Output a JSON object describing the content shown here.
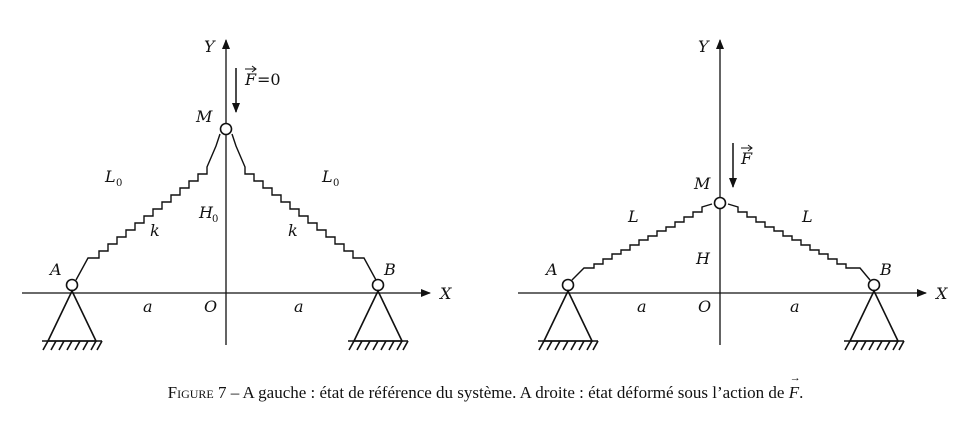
{
  "left": {
    "labels": {
      "y_axis": "Y",
      "x_axis": "X",
      "force": "F",
      "force_value": "=0",
      "node_m": "M",
      "node_a": "A",
      "node_b": "B",
      "origin": "O",
      "half_span_left": "a",
      "half_span_right": "a",
      "length_left": "L",
      "length_left_sub": "0",
      "length_right": "L",
      "length_right_sub": "0",
      "stiffness_left": "k",
      "stiffness_right": "k",
      "height": "H",
      "height_sub": "0"
    }
  },
  "right": {
    "labels": {
      "y_axis": "Y",
      "x_axis": "X",
      "force": "F",
      "node_m": "M",
      "node_a": "A",
      "node_b": "B",
      "origin": "O",
      "half_span_left": "a",
      "half_span_right": "a",
      "length_left": "L",
      "length_right": "L",
      "height": "H"
    }
  },
  "caption": {
    "figure_label": "Figure 7",
    "text": " – A gauche : état de référence du système. A droite : état déformé sous l’action de ",
    "force_symbol": "F",
    "end": "."
  }
}
